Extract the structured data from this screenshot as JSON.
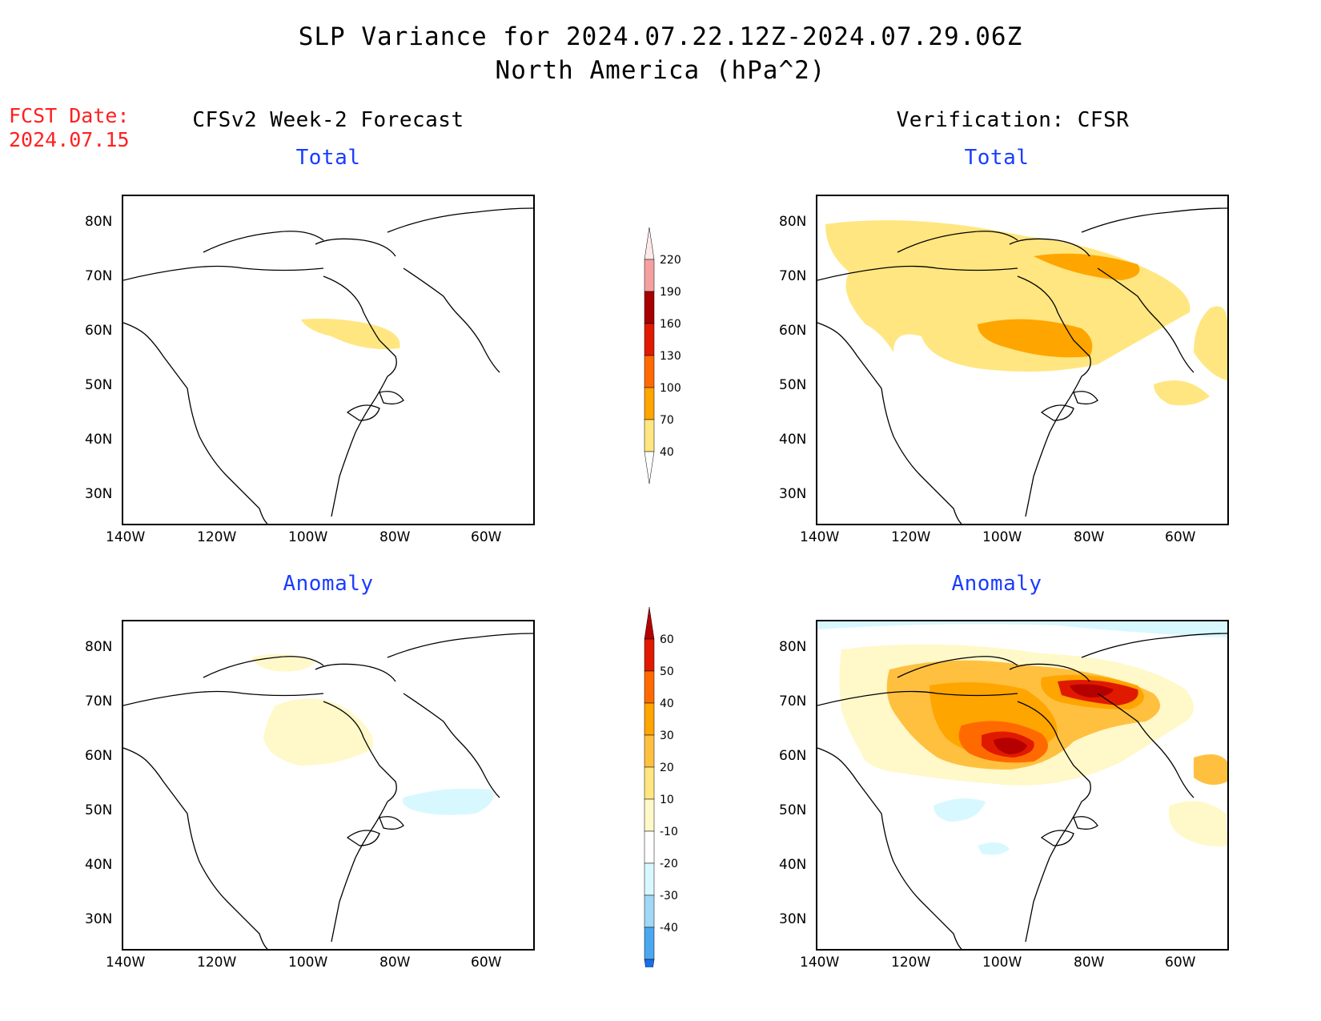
{
  "title_line1": "SLP Variance for 2024.07.22.12Z-2024.07.29.06Z",
  "title_line2": "North America (hPa^2)",
  "fcst_date_label": "FCST Date:",
  "fcst_date_value": "2024.07.15",
  "left_column_title": "CFSv2 Week-2 Forecast",
  "right_column_title": "Verification: CFSR",
  "panels": [
    {
      "row": "top",
      "column": "left",
      "subtitle": "Total",
      "field": "total"
    },
    {
      "row": "top",
      "column": "right",
      "subtitle": "Total",
      "field": "total"
    },
    {
      "row": "bottom",
      "column": "left",
      "subtitle": "Anomaly",
      "field": "anomaly"
    },
    {
      "row": "bottom",
      "column": "right",
      "subtitle": "Anomaly",
      "field": "anomaly"
    }
  ],
  "lat_ticks": [
    "80N",
    "70N",
    "60N",
    "50N",
    "40N",
    "30N"
  ],
  "lon_ticks": [
    "140W",
    "120W",
    "100W",
    "80W",
    "60W"
  ],
  "map_extent": {
    "lon_min": -140,
    "lon_max": -50,
    "lat_min": 25,
    "lat_max": 85
  },
  "total_colorbar": {
    "levels": [
      "40",
      "70",
      "100",
      "130",
      "160",
      "190",
      "220"
    ],
    "colors": [
      "#ffe680",
      "#ffa500",
      "#ff6a00",
      "#e01a00",
      "#a60000",
      "#f5a0a0",
      "#ffe8e8"
    ]
  },
  "anomaly_colorbar": {
    "levels": [
      "60",
      "50",
      "40",
      "30",
      "20",
      "10",
      "-10",
      "-20",
      "-30",
      "-40"
    ],
    "colors": [
      "#b50000",
      "#e01a00",
      "#ff6a00",
      "#ffa500",
      "#ffc040",
      "#ffe680",
      "#fff8c8",
      "#ffffff",
      "#d8f8ff",
      "#a0d8f5",
      "#4aa8f0",
      "#1a6ee8"
    ]
  },
  "legend_colors": {
    "title_red": "#ff2020",
    "subtitle_blue": "#1a3cff"
  }
}
